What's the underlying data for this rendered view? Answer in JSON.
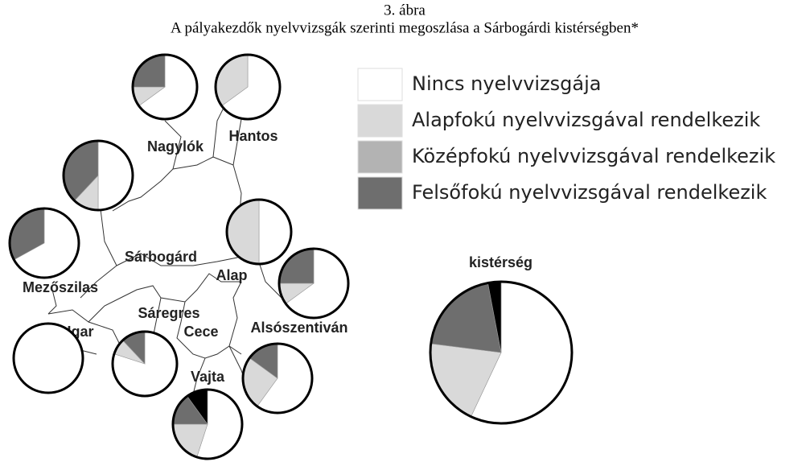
{
  "title": "3. ábra",
  "subtitle": "A pályakezdők nyelvvizsgák szerinti megoszlása a Sárbogárdi kistérségben*",
  "legend": {
    "categories": [
      "Nincs nyelvvizsgája",
      "Alapfokú nyelvvizsgával rendelkezik",
      "Középfokú nyelvvizsgával rendelkezik",
      "Felsőfokú nyelvvizsgával rendelkezik",
      null
    ],
    "colors": [
      "#ffffff",
      "#d9d9d9",
      "#b3b3b3",
      "#6e6e6e",
      "#000000"
    ]
  },
  "places": [
    "Nagylók",
    "Hantos",
    "Sárbogárd",
    "Alap",
    "Mezőszilas",
    "Sáregres",
    "Igar",
    "Cece",
    "Alsószentiván",
    "Vajta"
  ],
  "pies": [
    {
      "values": [
        65,
        10,
        0,
        25,
        0
      ]
    },
    {
      "values": [
        65,
        35,
        0,
        0,
        0
      ]
    },
    {
      "values": [
        50,
        12,
        0,
        38,
        0
      ]
    },
    {
      "values": [
        50,
        50,
        0,
        0,
        0
      ]
    },
    {
      "values": [
        67,
        0,
        0,
        33,
        0
      ]
    },
    {
      "values": [
        65,
        10,
        0,
        25,
        0
      ]
    },
    {
      "values": [
        100,
        0,
        0,
        0,
        0
      ]
    },
    {
      "values": [
        80,
        8,
        0,
        12,
        0
      ]
    },
    {
      "values": [
        60,
        25,
        0,
        15,
        0
      ]
    },
    {
      "values": [
        55,
        20,
        0,
        15,
        10
      ]
    }
  ],
  "total": {
    "label": "kistérség",
    "values": [
      57,
      20,
      0,
      20,
      3
    ]
  }
}
